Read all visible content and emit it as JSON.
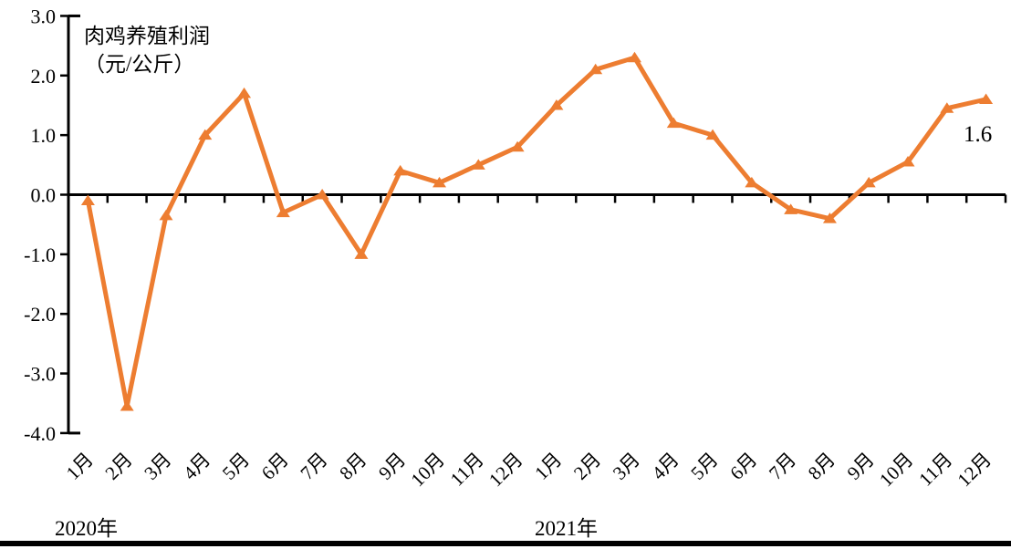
{
  "chart_data": {
    "type": "line",
    "title": "肉鸡养殖利润",
    "unit_label": "（元/公斤）",
    "legend_position": "none",
    "grid": false,
    "marker_shape": "triangle-up",
    "axis_color": "#000000",
    "categories": [
      "1月",
      "2月",
      "3月",
      "4月",
      "5月",
      "6月",
      "7月",
      "8月",
      "9月",
      "10月",
      "11月",
      "12月",
      "1月",
      "2月",
      "3月",
      "4月",
      "5月",
      "6月",
      "7月",
      "8月",
      "9月",
      "10月",
      "11月",
      "12月"
    ],
    "year_groups": [
      {
        "label": "2020年",
        "months": 12
      },
      {
        "label": "2021年",
        "months": 12
      }
    ],
    "series": [
      {
        "name": "肉鸡养殖利润",
        "color": "#ED7D31",
        "values": [
          -0.1,
          -3.55,
          -0.35,
          1.0,
          1.7,
          -0.3,
          0.0,
          -1.0,
          0.4,
          0.2,
          0.5,
          0.8,
          1.5,
          2.1,
          2.3,
          1.2,
          1.0,
          0.2,
          -0.25,
          -0.4,
          0.2,
          0.55,
          1.45,
          1.6
        ]
      }
    ],
    "annotation": {
      "text": "1.6",
      "attached_to": "last-point"
    },
    "ylim": [
      -4.0,
      3.0
    ],
    "yticks": [
      3,
      2,
      1,
      0,
      -1,
      -2,
      -3,
      -4
    ],
    "ytick_labels": [
      "3.0",
      "2.0",
      "1.0",
      "0.0",
      "-1.0",
      "-2.0",
      "-3.0",
      "-4.0"
    ]
  }
}
